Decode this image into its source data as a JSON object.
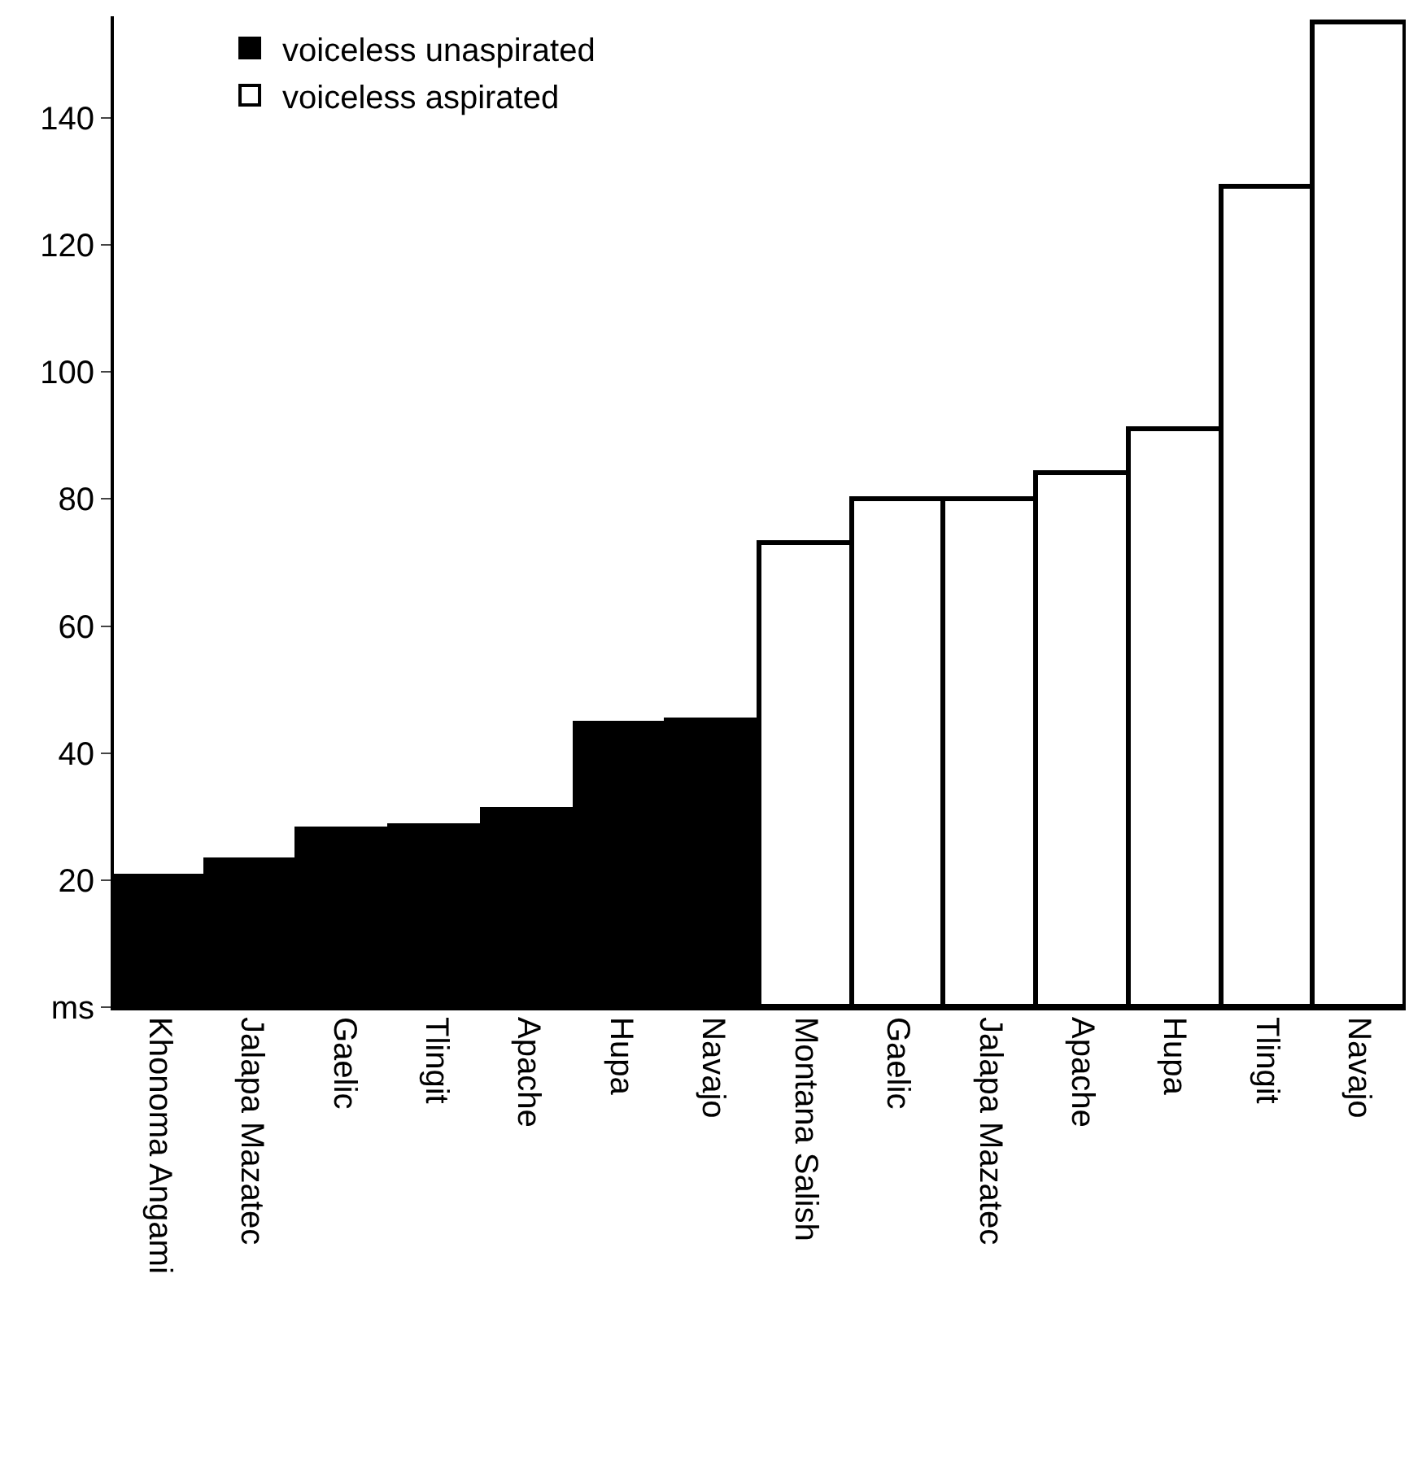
{
  "chart_data": {
    "type": "bar",
    "categories": [
      "Khonoma Angami",
      "Jalapa Mazatec",
      "Gaelic",
      "Tlingit",
      "Apache",
      "Hupa",
      "Navajo",
      "Montana Salish",
      "Gaelic",
      "Jalapa Mazatec",
      "Apache",
      "Hupa",
      "Tlingit",
      "Navajo"
    ],
    "series": [
      {
        "name": "voiceless unaspirated",
        "color": "#000000",
        "values": [
          20.5,
          23,
          28,
          28.5,
          31,
          44.5,
          45,
          null,
          null,
          null,
          null,
          null,
          null,
          null
        ]
      },
      {
        "name": "voiceless aspirated",
        "color": "#ffffff",
        "values": [
          null,
          null,
          null,
          null,
          null,
          null,
          null,
          73,
          80,
          80,
          84,
          91,
          129,
          155
        ]
      }
    ],
    "ylim": [
      0,
      156
    ],
    "yticks": [
      {
        "value": 0,
        "label": "ms"
      },
      20,
      40,
      60,
      80,
      100,
      120,
      140
    ],
    "legend": "top left"
  }
}
